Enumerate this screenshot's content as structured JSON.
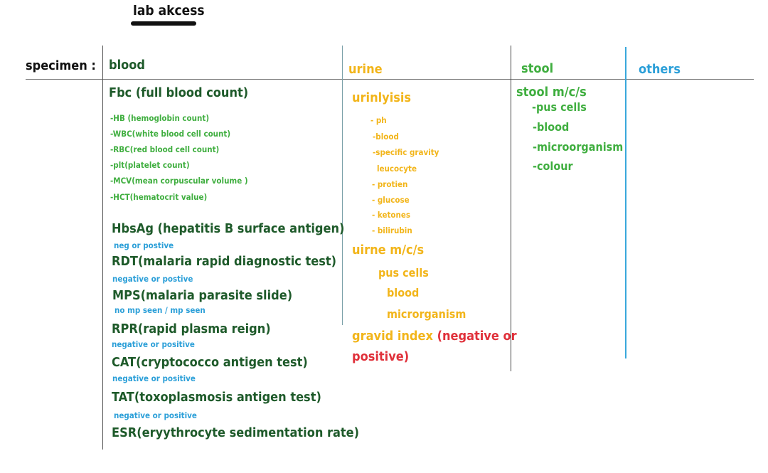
{
  "title": "lab akcess",
  "specimen_label": "specimen  :",
  "columns": {
    "blood": "blood",
    "urine": "urine",
    "stool": "stool",
    "others": "others"
  },
  "blood": {
    "fbc_heading": "Fbc (full blood count)",
    "fbc_items": [
      "-HB (hemoglobin count)",
      "-WBC(white blood cell count)",
      "-RBC(red blood cell count)",
      "-plt(platelet count)",
      "-MCV(mean corpuscular volume )",
      "-HCT(hematocrit value)"
    ],
    "tests": [
      {
        "name": "HbsAg (hepatitis B surface antigen)",
        "result": "neg or postive"
      },
      {
        "name": "RDT(malaria rapid diagnostic test)",
        "result": "negative or postive"
      },
      {
        "name": "MPS(malaria parasite slide)",
        "result": "no mp seen / mp seen"
      },
      {
        "name": "RPR(rapid plasma reign)",
        "result": "negative or positive"
      },
      {
        "name": "CAT(cryptococco antigen test)",
        "result": "negative or positive"
      },
      {
        "name": "TAT(toxoplasmosis antigen test)",
        "result": "negative or positive"
      },
      {
        "name": "ESR(eryythrocyte sedimentation rate)",
        "result": ""
      }
    ]
  },
  "urine": {
    "urinalysis_heading": "urinlyisis",
    "urinalysis_items": [
      "- ph",
      "-blood",
      "-specific gravity",
      "leucocyte",
      "- protien",
      "- glucose",
      "- ketones",
      "- bilirubin"
    ],
    "mcs_heading": "uirne m/c/s",
    "mcs_items": [
      "pus cells",
      "blood",
      "microrganism"
    ],
    "gravid_label": "gravid index",
    "gravid_result_1": "(negative or",
    "gravid_result_2": "positive)"
  },
  "stool": {
    "heading": "stool m/c/s",
    "items": [
      "-pus cells",
      "-blood",
      "-microorganism",
      "-colour"
    ]
  },
  "colors": {
    "dark_green": "#1e5a2a",
    "light_green": "#3fae3f",
    "orange": "#f2b51a",
    "red": "#e0303a",
    "blue": "#2b9fd8",
    "black": "#111111"
  }
}
